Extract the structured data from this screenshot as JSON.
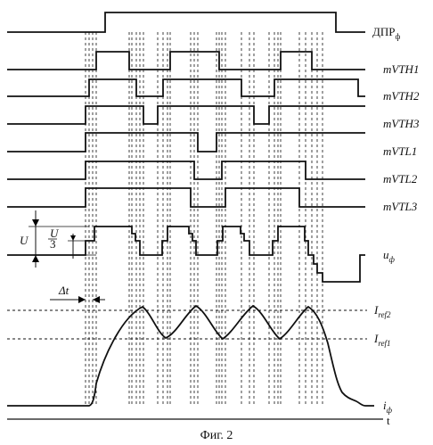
{
  "figure": {
    "caption": "Фиг. 2",
    "signals": [
      {
        "id": "dpr",
        "main": "ДПР",
        "sub": "ф",
        "italic": false
      },
      {
        "id": "mvth1",
        "main": "mVTH1",
        "sub": "",
        "italic": true
      },
      {
        "id": "mvth2",
        "main": "mVTH2",
        "sub": "",
        "italic": true
      },
      {
        "id": "mvth3",
        "main": "mVTH3",
        "sub": "",
        "italic": true
      },
      {
        "id": "mvtl1",
        "main": "mVTL1",
        "sub": "",
        "italic": true
      },
      {
        "id": "mvtl2",
        "main": "mVTL2",
        "sub": "",
        "italic": true
      },
      {
        "id": "mvtl3",
        "main": "mVTL3",
        "sub": "",
        "italic": true
      },
      {
        "id": "uphi",
        "main": "u",
        "sub": "ф",
        "italic": true
      },
      {
        "id": "iref2",
        "main": "I",
        "sub": "ref2",
        "italic": true
      },
      {
        "id": "iref1",
        "main": "I",
        "sub": "ref1",
        "italic": true
      },
      {
        "id": "iphi",
        "main": "i",
        "sub": "ф",
        "italic": true
      },
      {
        "id": "t",
        "main": "t",
        "sub": "",
        "italic": false
      }
    ],
    "annotations": {
      "u_label": "U",
      "u3_num": "U",
      "u3_den": "3",
      "dt_label": "Δt"
    }
  }
}
